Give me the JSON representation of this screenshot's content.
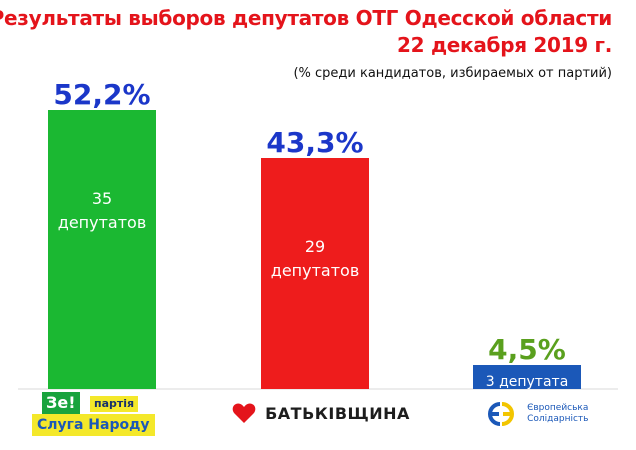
{
  "title_line1": "Результаты выборов депутатов ОТГ Одесской области",
  "title_line2": "22 декабря 2019 г.",
  "subtitle": "(% среди кандидатов, избираемых от партий)",
  "chart_data": {
    "type": "bar",
    "categories": [
      "Слуга Народу",
      "Батьківщина",
      "Європейська Солідарність"
    ],
    "values": [
      52.2,
      43.3,
      4.5
    ],
    "value_labels": [
      "52,2%",
      "43,3%",
      "4,5%"
    ],
    "seats": [
      "35",
      "29",
      "3"
    ],
    "seat_labels": [
      [
        "35",
        "депутатов"
      ],
      [
        "29",
        "депутатов"
      ],
      [
        "3 депутата"
      ]
    ],
    "ylim": [
      0,
      52.2
    ],
    "grid": false,
    "colors": {
      "bars": [
        "#1bb832",
        "#ee1c1c",
        "#1b58b8"
      ],
      "value_labels": [
        "#1b37c9",
        "#1b37c9",
        "#5aa01e"
      ],
      "seat_text": "#ffffff",
      "title": "#e4141b"
    }
  },
  "logos": {
    "ze_top": "Зе!",
    "ze_party": "партія",
    "ze_bottom": "Слуга Народу",
    "bat": "БАТЬКІВЩИНА",
    "es_line1": "Європейська",
    "es_line2": "Солідарність"
  }
}
